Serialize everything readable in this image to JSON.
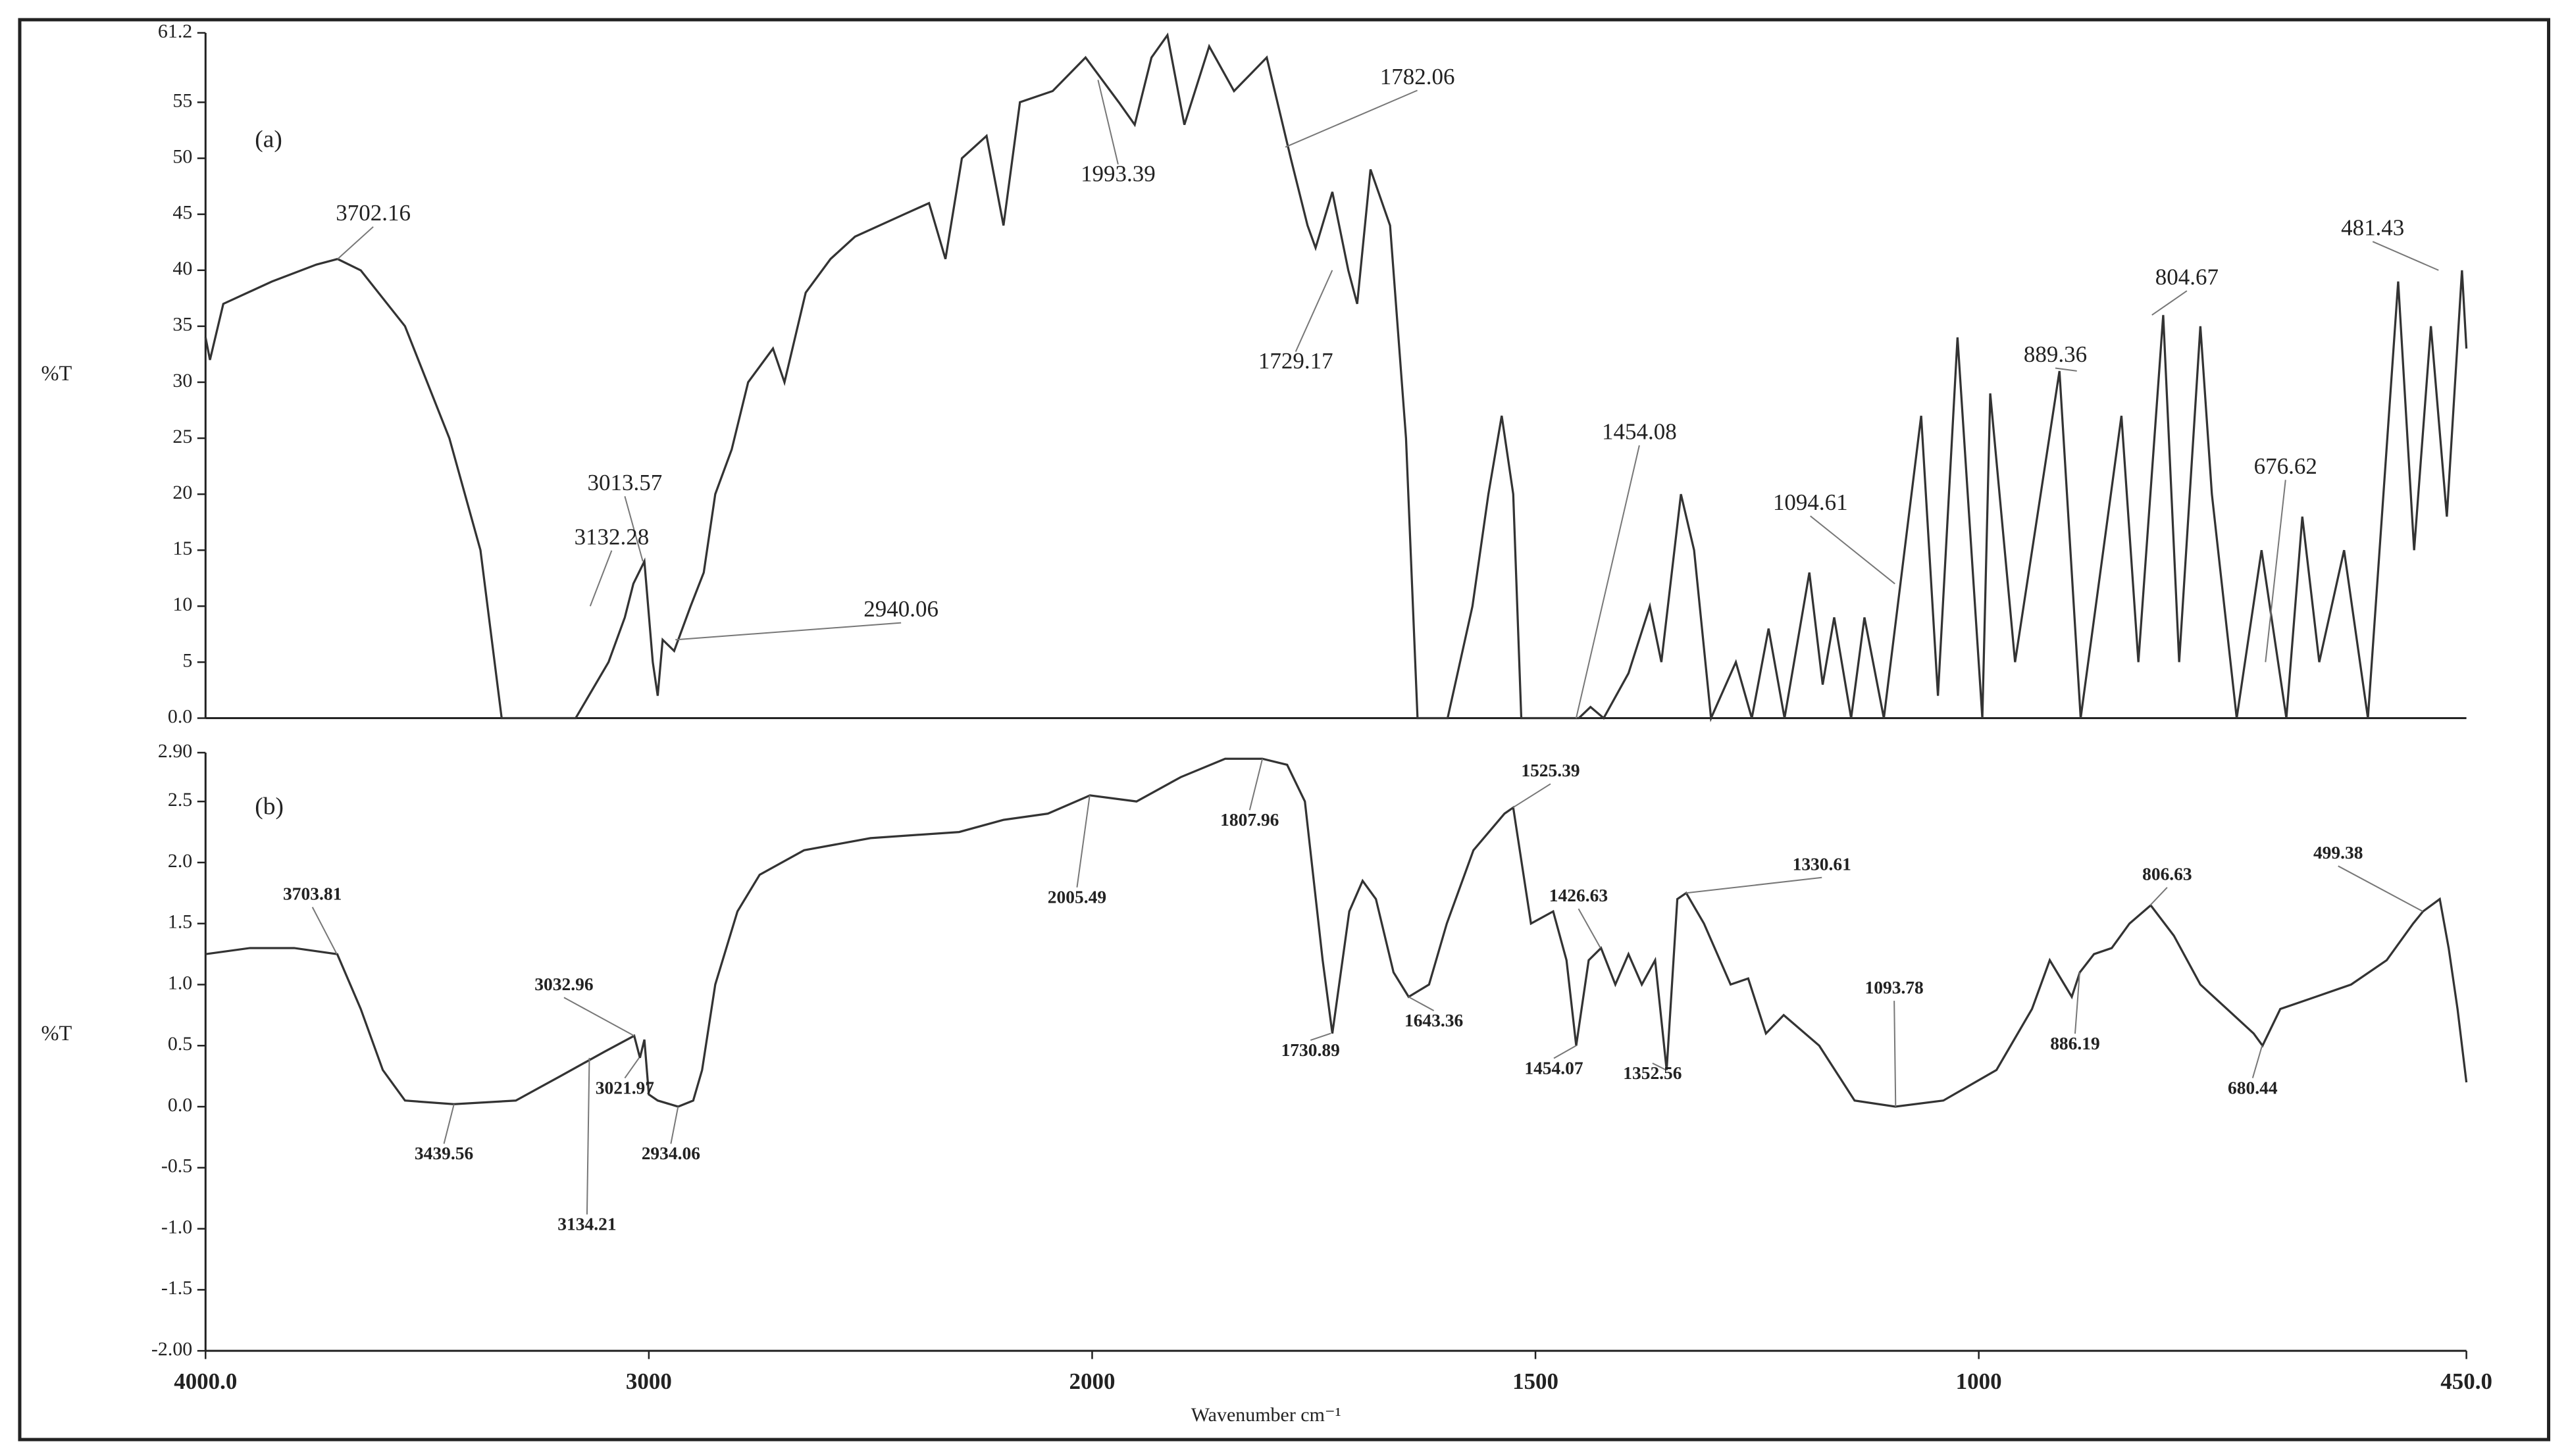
{
  "chart_data": [
    {
      "type": "line",
      "panel_label": "(a)",
      "ylabel": "%T",
      "color": "#333333",
      "xlim": [
        4000,
        450
      ],
      "xscale": {
        "break": 2000,
        "factor": 2
      },
      "ylim": [
        0,
        61.2
      ],
      "yticks": [
        {
          "value": 0,
          "label": "0.0"
        },
        5,
        10,
        15,
        20,
        25,
        30,
        35,
        40,
        45,
        50,
        55,
        61.2
      ],
      "x": [
        4000,
        3990,
        3960,
        3850,
        3750,
        3702,
        3650,
        3550,
        3450,
        3380,
        3332,
        3165,
        3091,
        3054,
        3035,
        3010,
        2991,
        2980,
        2969,
        2943,
        2906,
        2876,
        2850,
        2813,
        2776,
        2720,
        2694,
        2646,
        2590,
        2535,
        2424,
        2368,
        2331,
        2294,
        2238,
        2200,
        2163,
        2089,
        2015,
        1970,
        1952,
        1933,
        1915,
        1896,
        1868,
        1840,
        1803,
        1776,
        1757,
        1748,
        1729,
        1711,
        1701,
        1686,
        1664,
        1646,
        1633,
        1599,
        1571,
        1553,
        1538,
        1525,
        1516,
        1451,
        1438,
        1423,
        1395,
        1371,
        1358,
        1336,
        1321,
        1302,
        1274,
        1256,
        1237,
        1219,
        1191,
        1176,
        1163,
        1144,
        1129,
        1107,
        1065,
        1046,
        1024,
        996,
        987,
        959,
        909,
        885,
        839,
        820,
        792,
        774,
        750,
        737,
        709,
        681,
        653,
        635,
        616,
        588,
        561,
        527,
        509,
        490,
        472,
        455,
        450
      ],
      "values": [
        34,
        32,
        37,
        39,
        40.5,
        41,
        40,
        35,
        25,
        15,
        0,
        0,
        5,
        9,
        12,
        14,
        5,
        2,
        7,
        6,
        10,
        13,
        20,
        24,
        30,
        33,
        30,
        38,
        41,
        43,
        45,
        46,
        41,
        50,
        52,
        44,
        55,
        56,
        59,
        55,
        53,
        59,
        61,
        53,
        60,
        56,
        59,
        50,
        44,
        42,
        47,
        40,
        37,
        49,
        44,
        25,
        0,
        0,
        10,
        20,
        27,
        20,
        0,
        0,
        1,
        0,
        4,
        10,
        5,
        20,
        15,
        0,
        5,
        0,
        8,
        0,
        13,
        3,
        9,
        0,
        9,
        0,
        27,
        2,
        34,
        0,
        29,
        5,
        31,
        0,
        27,
        5,
        36,
        5,
        35,
        20,
        0,
        15,
        0,
        18,
        5,
        15,
        0,
        39,
        15,
        35,
        18,
        40,
        33
      ],
      "annotations": [
        {
          "label": "3702.16",
          "x": 3702.16,
          "y": 41
        },
        {
          "label": "3013.57",
          "x": 3013.57,
          "y": 14
        },
        {
          "label": "3132.28",
          "x": 3132.28,
          "y": 10
        },
        {
          "label": "2940.06",
          "x": 2940.06,
          "y": 7
        },
        {
          "label": "1993.39",
          "x": 1993.39,
          "y": 57
        },
        {
          "label": "1782.06",
          "x": 1782.06,
          "y": 51
        },
        {
          "label": "1729.17",
          "x": 1729.17,
          "y": 40
        },
        {
          "label": "1454.08",
          "x": 1454.08,
          "y": 0
        },
        {
          "label": "1094.61",
          "x": 1094.61,
          "y": 12
        },
        {
          "label": "889.36",
          "x": 889.36,
          "y": 31
        },
        {
          "label": "804.67",
          "x": 804.67,
          "y": 36
        },
        {
          "label": "676.62",
          "x": 676.62,
          "y": 5
        },
        {
          "label": "481.43",
          "x": 481.43,
          "y": 40
        }
      ]
    },
    {
      "type": "line",
      "panel_label": "(b)",
      "ylabel": "%T",
      "xlabel": "Wavenumber cm⁻¹",
      "color": "#333333",
      "xlim": [
        4000,
        450
      ],
      "xscale": {
        "break": 2000,
        "factor": 2
      },
      "xticks": [
        {
          "value": 4000,
          "label": "4000.0"
        },
        3000,
        2000,
        1500,
        1000,
        {
          "value": 450,
          "label": "450.0"
        }
      ],
      "ylim": [
        -2,
        2.9
      ],
      "yticks": [
        {
          "value": -2,
          "label": "-2.00"
        },
        -1.5,
        {
          "value": -1,
          "label": "-1.0"
        },
        -0.5,
        {
          "value": 0,
          "label": "0.0"
        },
        0.5,
        {
          "value": 1,
          "label": "1.0"
        },
        1.5,
        {
          "value": 2,
          "label": "2.0"
        },
        2.5,
        {
          "value": 2.9,
          "label": "2.90"
        }
      ],
      "x": [
        4000,
        3900,
        3800,
        3703,
        3650,
        3600,
        3550,
        3440,
        3300,
        3200,
        3100,
        3033,
        3020,
        3010,
        3000,
        2980,
        2934,
        2900,
        2880,
        2850,
        2800,
        2750,
        2650,
        2500,
        2300,
        2200,
        2100,
        2005,
        1950,
        1900,
        1850,
        1808,
        1780,
        1760,
        1740,
        1729,
        1710,
        1695,
        1680,
        1660,
        1643,
        1620,
        1600,
        1570,
        1535,
        1525,
        1505,
        1480,
        1465,
        1454,
        1440,
        1426,
        1410,
        1395,
        1380,
        1365,
        1352,
        1340,
        1330,
        1310,
        1280,
        1260,
        1240,
        1220,
        1180,
        1140,
        1094,
        1040,
        980,
        940,
        920,
        895,
        886,
        870,
        850,
        830,
        806,
        780,
        750,
        720,
        690,
        680,
        660,
        620,
        580,
        540,
        510,
        499,
        480,
        470,
        460,
        450
      ],
      "values": [
        1.25,
        1.3,
        1.3,
        1.25,
        0.8,
        0.3,
        0.05,
        0.02,
        0.05,
        0.25,
        0.45,
        0.58,
        0.4,
        0.55,
        0.1,
        0.05,
        0,
        0.05,
        0.3,
        1,
        1.6,
        1.9,
        2.1,
        2.2,
        2.25,
        2.35,
        2.4,
        2.55,
        2.5,
        2.7,
        2.85,
        2.85,
        2.8,
        2.5,
        1.2,
        0.6,
        1.6,
        1.85,
        1.7,
        1.1,
        0.9,
        1,
        1.5,
        2.1,
        2.4,
        2.45,
        1.5,
        1.6,
        1.2,
        0.5,
        1.2,
        1.3,
        1,
        1.25,
        1,
        1.2,
        0.3,
        1.7,
        1.75,
        1.5,
        1,
        1.05,
        0.6,
        0.75,
        0.5,
        0.05,
        0,
        0.05,
        0.3,
        0.8,
        1.2,
        0.9,
        1.1,
        1.25,
        1.3,
        1.5,
        1.65,
        1.4,
        1,
        0.8,
        0.6,
        0.5,
        0.8,
        0.9,
        1,
        1.2,
        1.5,
        1.6,
        1.7,
        1.3,
        0.8,
        0.2
      ],
      "annotations": [
        {
          "label": "3703.81",
          "x": 3703.81,
          "y": 1.25
        },
        {
          "label": "3439.56",
          "x": 3439.56,
          "y": 0.02
        },
        {
          "label": "3032.96",
          "x": 3032.96,
          "y": 0.58
        },
        {
          "label": "3021.97",
          "x": 3021.97,
          "y": 0.4
        },
        {
          "label": "3134.21",
          "x": 3134.21,
          "y": 0.4
        },
        {
          "label": "2934.06",
          "x": 2934.06,
          "y": 0
        },
        {
          "label": "2005.49",
          "x": 2005.49,
          "y": 2.55
        },
        {
          "label": "1807.96",
          "x": 1807.96,
          "y": 2.85
        },
        {
          "label": "1525.39",
          "x": 1525.39,
          "y": 2.45
        },
        {
          "label": "1730.89",
          "x": 1730.89,
          "y": 0.6
        },
        {
          "label": "1643.36",
          "x": 1643.36,
          "y": 0.9
        },
        {
          "label": "1426.63",
          "x": 1426.63,
          "y": 1.3
        },
        {
          "label": "1454.07",
          "x": 1454.07,
          "y": 0.5
        },
        {
          "label": "1352.56",
          "x": 1352.56,
          "y": 0.3
        },
        {
          "label": "1330.61",
          "x": 1330.61,
          "y": 1.75
        },
        {
          "label": "1093.78",
          "x": 1093.78,
          "y": 0
        },
        {
          "label": "886.19",
          "x": 886.19,
          "y": 1.1
        },
        {
          "label": "806.63",
          "x": 806.63,
          "y": 1.65
        },
        {
          "label": "680.44",
          "x": 680.44,
          "y": 0.5
        },
        {
          "label": "499.38",
          "x": 499.38,
          "y": 1.6
        }
      ]
    }
  ]
}
